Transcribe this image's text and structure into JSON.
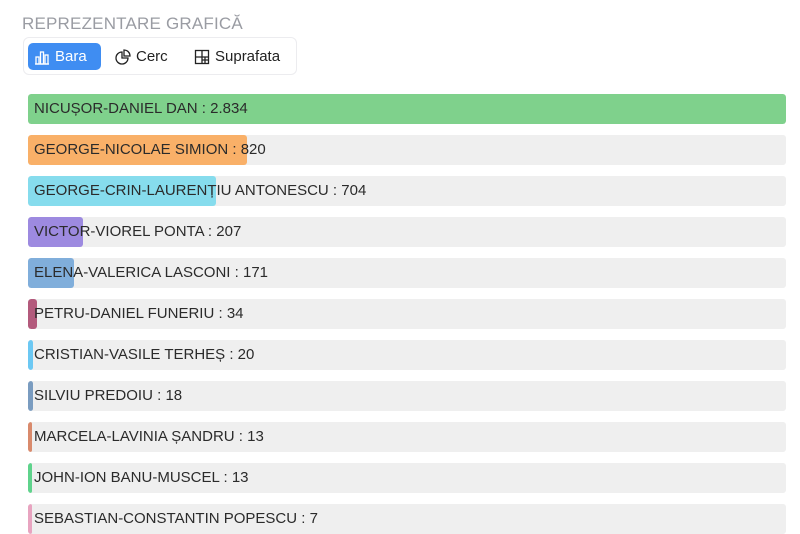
{
  "title": "REPREZENTARE GRAFICĂ",
  "tabs": [
    {
      "label": "Bara",
      "icon": "bar-chart-icon",
      "active": true
    },
    {
      "label": "Cerc",
      "icon": "pie-chart-icon",
      "active": false
    },
    {
      "label": "Suprafata",
      "icon": "treemap-icon",
      "active": false
    }
  ],
  "chart_data": {
    "type": "bar",
    "orientation": "horizontal",
    "categories": [
      "NICUȘOR-DANIEL DAN",
      "GEORGE-NICOLAE SIMION",
      "GEORGE-CRIN-LAURENȚIU ANTONESCU",
      "VICTOR-VIOREL PONTA",
      "ELENA-VALERICA LASCONI",
      "PETRU-DANIEL FUNERIU",
      "CRISTIAN-VASILE TERHEȘ",
      "SILVIU PREDOIU",
      "MARCELA-LAVINIA ȘANDRU",
      "JOHN-ION BANU-MUSCEL",
      "SEBASTIAN-CONSTANTIN POPESCU"
    ],
    "values": [
      2834,
      820,
      704,
      207,
      171,
      34,
      20,
      18,
      13,
      13,
      7
    ],
    "value_labels": [
      "2.834",
      "820",
      "704",
      "207",
      "171",
      "34",
      "20",
      "18",
      "13",
      "13",
      "7"
    ],
    "colors": [
      "#7fd18c",
      "#f9b068",
      "#86dced",
      "#9d8ae0",
      "#80aedb",
      "#b35a7c",
      "#6cc8f3",
      "#7a9cc0",
      "#d98a6c",
      "#5fd38c",
      "#e8a4c0"
    ]
  }
}
